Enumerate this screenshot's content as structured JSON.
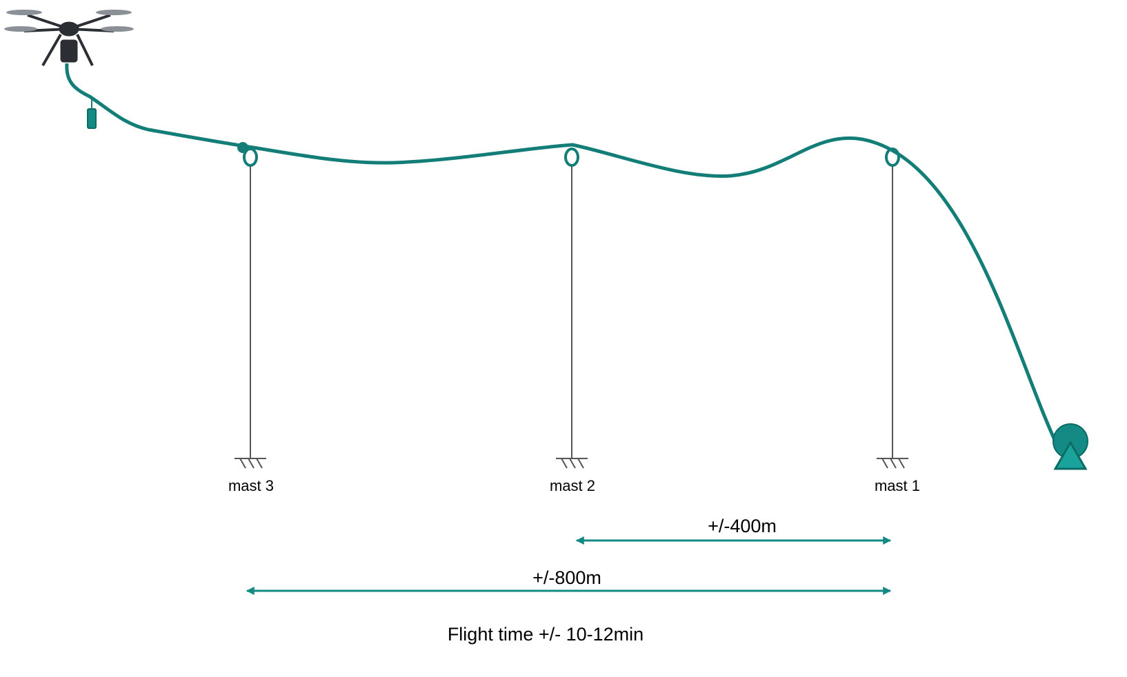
{
  "masts": [
    {
      "label": "mast 3"
    },
    {
      "label": "mast 2"
    },
    {
      "label": "mast 1"
    }
  ],
  "distances": [
    {
      "label": "+/-400m"
    },
    {
      "label": "+/-800m"
    }
  ],
  "caption": "Flight time +/- 10-12min"
}
